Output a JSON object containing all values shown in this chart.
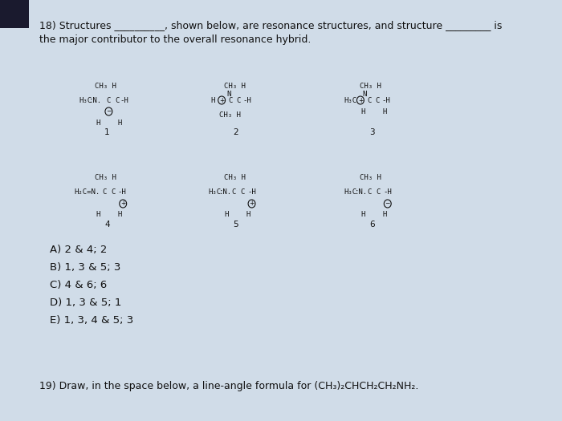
{
  "bg_color": "#d0dce8",
  "paper_color": "#dce8f0",
  "fig_width": 7.0,
  "fig_height": 5.25,
  "title_text": "18) Structures __________, shown below, are resonance structures, and structure _________ is\nthe major contributor to the overall resonance hybrid.",
  "answer_choices": [
    "A) 2 & 4; 2",
    "B) 1, 3 & 5; 3",
    "C) 4 & 6; 6",
    "D) 1, 3 & 5; 1",
    "E) 1, 3, 4 & 5; 3"
  ],
  "question19": "19) Draw, in the space below, a line-angle formula for (CH₃)₂CHCH₂CH₂NH₂.",
  "struct1_label": "1",
  "struct2_label": "2",
  "struct3_label": "3",
  "struct4_label": "4",
  "struct5_label": "5",
  "struct6_label": "6",
  "font_size_main": 9,
  "font_size_struct": 6.5,
  "font_size_answer": 9.5,
  "text_color": "#111111",
  "corner_dark": "#1a1a2e"
}
